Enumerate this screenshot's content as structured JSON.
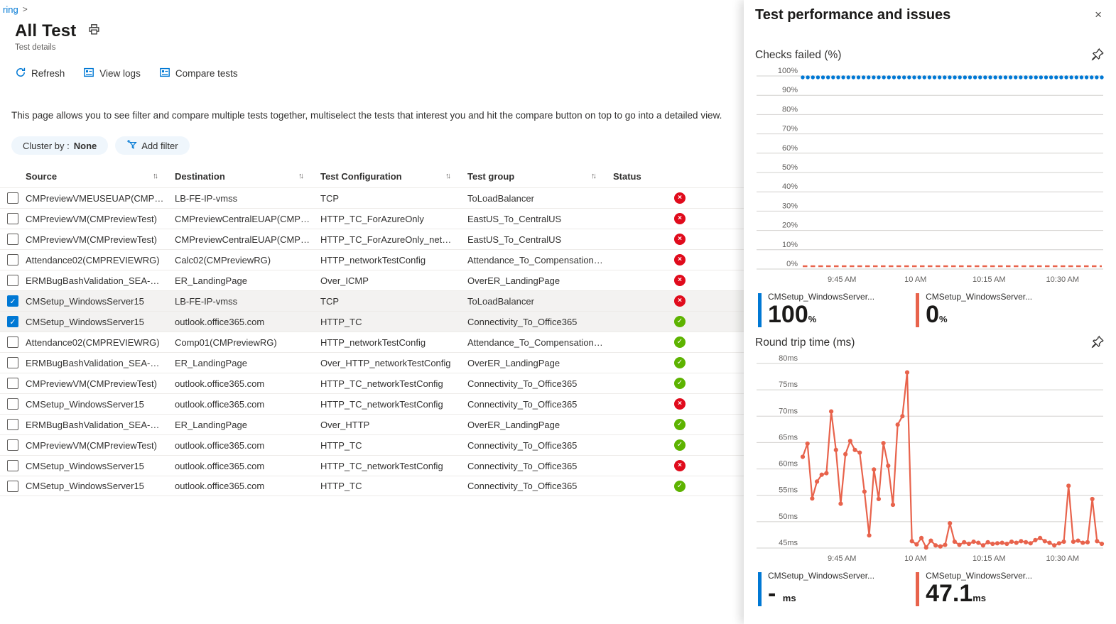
{
  "breadcrumb": {
    "trail": "ring",
    "chevron": ">"
  },
  "header": {
    "title": "All Test",
    "subtitle": "Test details"
  },
  "toolbar": {
    "refresh": "Refresh",
    "view_logs": "View logs",
    "compare_tests": "Compare tests"
  },
  "description": "This page allows you to see filter and compare multiple tests together, multiselect the tests that interest you and hit the compare button on top to go into a detailed view.",
  "filters": {
    "cluster_by_label": "Cluster by :",
    "cluster_by_value": "None",
    "add_filter": "Add filter"
  },
  "colors": {
    "accent": "#0078d4",
    "fail": "#e00b1c",
    "pass": "#5db300",
    "series_blue": "#0078d4",
    "series_red": "#e8634c"
  },
  "table": {
    "columns": [
      "Source",
      "Destination",
      "Test Configuration",
      "Test group",
      "Status"
    ],
    "sort_glyph": "↑↓",
    "check_glyph": "✓",
    "fail_glyph": "×",
    "pass_glyph": "✓",
    "rows": [
      {
        "checked": false,
        "source": "CMPreviewVMEUSEUAP(CMPREVIE...",
        "destination": "LB-FE-IP-vmss",
        "config": "TCP",
        "group": "ToLoadBalancer",
        "status": "fail"
      },
      {
        "checked": false,
        "source": "CMPreviewVM(CMPreviewTest)",
        "destination": "CMPreviewCentralEUAP(CMPREVIE...",
        "config": "HTTP_TC_ForAzureOnly",
        "group": "EastUS_To_CentralUS",
        "status": "fail"
      },
      {
        "checked": false,
        "source": "CMPreviewVM(CMPreviewTest)",
        "destination": "CMPreviewCentralEUAP(CMPREVIE...",
        "config": "HTTP_TC_ForAzureOnly_networkTe...",
        "group": "EastUS_To_CentralUS",
        "status": "fail"
      },
      {
        "checked": false,
        "source": "Attendance02(CMPREVIEWRG)",
        "destination": "Calc02(CMPreviewRG)",
        "config": "HTTP_networkTestConfig",
        "group": "Attendance_To_Compensation_and...",
        "status": "fail"
      },
      {
        "checked": false,
        "source": "ERMBugBashValidation_SEA-ER-50...",
        "destination": "ER_LandingPage",
        "config": "Over_ICMP",
        "group": "OverER_LandingPage",
        "status": "fail"
      },
      {
        "checked": true,
        "source": "CMSetup_WindowsServer15",
        "destination": "LB-FE-IP-vmss",
        "config": "TCP",
        "group": "ToLoadBalancer",
        "status": "fail"
      },
      {
        "checked": true,
        "source": "CMSetup_WindowsServer15",
        "destination": "outlook.office365.com",
        "config": "HTTP_TC",
        "group": "Connectivity_To_Office365",
        "status": "pass"
      },
      {
        "checked": false,
        "source": "Attendance02(CMPREVIEWRG)",
        "destination": "Comp01(CMPreviewRG)",
        "config": "HTTP_networkTestConfig",
        "group": "Attendance_To_Compensation_and...",
        "status": "pass"
      },
      {
        "checked": false,
        "source": "ERMBugBashValidation_SEA-ER-50...",
        "destination": "ER_LandingPage",
        "config": "Over_HTTP_networkTestConfig",
        "group": "OverER_LandingPage",
        "status": "pass"
      },
      {
        "checked": false,
        "source": "CMPreviewVM(CMPreviewTest)",
        "destination": "outlook.office365.com",
        "config": "HTTP_TC_networkTestConfig",
        "group": "Connectivity_To_Office365",
        "status": "pass"
      },
      {
        "checked": false,
        "source": "CMSetup_WindowsServer15",
        "destination": "outlook.office365.com",
        "config": "HTTP_TC_networkTestConfig",
        "group": "Connectivity_To_Office365",
        "status": "fail"
      },
      {
        "checked": false,
        "source": "ERMBugBashValidation_SEA-ER-50...",
        "destination": "ER_LandingPage",
        "config": "Over_HTTP",
        "group": "OverER_LandingPage",
        "status": "pass"
      },
      {
        "checked": false,
        "source": "CMPreviewVM(CMPreviewTest)",
        "destination": "outlook.office365.com",
        "config": "HTTP_TC",
        "group": "Connectivity_To_Office365",
        "status": "pass"
      },
      {
        "checked": false,
        "source": "CMSetup_WindowsServer15",
        "destination": "outlook.office365.com",
        "config": "HTTP_TC_networkTestConfig",
        "group": "Connectivity_To_Office365",
        "status": "fail"
      },
      {
        "checked": false,
        "source": "CMSetup_WindowsServer15",
        "destination": "outlook.office365.com",
        "config": "HTTP_TC",
        "group": "Connectivity_To_Office365",
        "status": "pass"
      }
    ]
  },
  "panel": {
    "title": "Test performance and issues",
    "close_glyph": "×"
  },
  "chart_data": [
    {
      "type": "line",
      "title": "Checks failed (%)",
      "xlabel": "",
      "ylabel": "%",
      "ylim": [
        0,
        100
      ],
      "grid": true,
      "legend_position": "bottom",
      "y_ticks": [
        {
          "v": 100,
          "label": "100%"
        },
        {
          "v": 90,
          "label": "90%"
        },
        {
          "v": 80,
          "label": "80%"
        },
        {
          "v": 70,
          "label": "70%"
        },
        {
          "v": 60,
          "label": "60%"
        },
        {
          "v": 50,
          "label": "50%"
        },
        {
          "v": 40,
          "label": "40%"
        },
        {
          "v": 30,
          "label": "30%"
        },
        {
          "v": 20,
          "label": "20%"
        },
        {
          "v": 10,
          "label": "10%"
        },
        {
          "v": 0,
          "label": "0%"
        }
      ],
      "t_range": [
        0,
        61
      ],
      "x_ticks": [
        {
          "t": 8,
          "label": "9:45 AM"
        },
        {
          "t": 23,
          "label": "10 AM"
        },
        {
          "t": 38,
          "label": "10:15 AM"
        },
        {
          "t": 53,
          "label": "10:30 AM"
        }
      ],
      "series": [
        {
          "name": "CMSetup_WindowsServer...",
          "color": "#0078d4",
          "style": "dots",
          "constant_value": 100,
          "num_points": 60
        },
        {
          "name": "CMSetup_WindowsServer...",
          "color": "#e8634c",
          "style": "dashed",
          "constant_value": 0,
          "num_points": 60
        }
      ],
      "legend": [
        {
          "label": "CMSetup_WindowsServer...",
          "value": "100",
          "unit": "%",
          "color": "#0078d4"
        },
        {
          "label": "CMSetup_WindowsServer...",
          "value": "0",
          "unit": "%",
          "color": "#e8634c"
        }
      ]
    },
    {
      "type": "line",
      "title": "Round trip time (ms)",
      "xlabel": "",
      "ylabel": "ms",
      "ylim": [
        45,
        80
      ],
      "grid": true,
      "legend_position": "bottom",
      "y_ticks": [
        {
          "v": 80,
          "label": "80ms"
        },
        {
          "v": 75,
          "label": "75ms"
        },
        {
          "v": 70,
          "label": "70ms"
        },
        {
          "v": 65,
          "label": "65ms"
        },
        {
          "v": 60,
          "label": "60ms"
        },
        {
          "v": 55,
          "label": "55ms"
        },
        {
          "v": 50,
          "label": "50ms"
        },
        {
          "v": 45,
          "label": "45ms"
        }
      ],
      "t_range": [
        0,
        61
      ],
      "x_ticks": [
        {
          "t": 8,
          "label": "9:45 AM"
        },
        {
          "t": 23,
          "label": "10 AM"
        },
        {
          "t": 38,
          "label": "10:15 AM"
        },
        {
          "t": 53,
          "label": "10:30 AM"
        }
      ],
      "series": [
        {
          "name": "CMSetup_WindowsServer...",
          "color": "#0078d4",
          "style": "line-markers",
          "values": []
        },
        {
          "name": "CMSetup_WindowsServer...",
          "color": "#e8634c",
          "style": "line-markers",
          "values": [
            62.3,
            64.8,
            54.4,
            57.6,
            58.9,
            59.2,
            70.9,
            63.6,
            53.4,
            62.8,
            65.3,
            63.6,
            63.1,
            55.7,
            47.4,
            59.9,
            54.3,
            64.9,
            60.6,
            53.2,
            68.4,
            70.0,
            78.3,
            46.3,
            45.7,
            46.9,
            45.1,
            46.4,
            45.5,
            45.3,
            45.6,
            49.7,
            46.2,
            45.6,
            46.1,
            45.8,
            46.2,
            46.0,
            45.5,
            46.1,
            45.8,
            45.9,
            46.0,
            45.8,
            46.2,
            46.0,
            46.3,
            46.1,
            45.9,
            46.5,
            46.9,
            46.3,
            46.0,
            45.5,
            45.9,
            46.2,
            56.8,
            46.2,
            46.4,
            46.0,
            46.1,
            54.3,
            46.3,
            45.8
          ]
        }
      ],
      "legend": [
        {
          "label": "CMSetup_WindowsServer...",
          "value": "-",
          "unit": "ms",
          "color": "#0078d4"
        },
        {
          "label": "CMSetup_WindowsServer...",
          "value": "47.1",
          "unit": "ms",
          "color": "#e8634c"
        }
      ]
    }
  ]
}
